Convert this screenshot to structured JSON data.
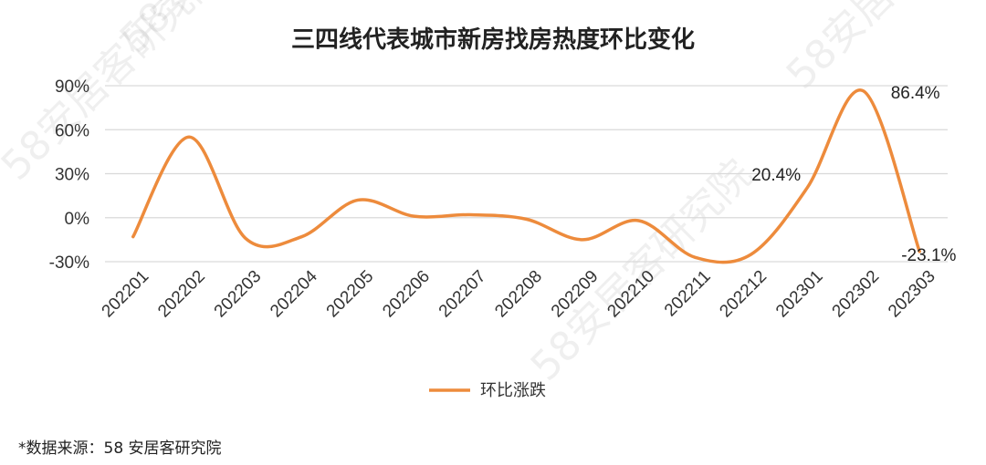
{
  "chart_data": {
    "type": "line",
    "title": "三四线代表城市新房找房热度环比变化",
    "categories": [
      "202201",
      "202202",
      "202203",
      "202204",
      "202205",
      "202206",
      "202207",
      "202208",
      "202209",
      "202210",
      "202211",
      "202212",
      "202301",
      "202302",
      "202303"
    ],
    "series": [
      {
        "name": "环比涨跌",
        "color": "#ED8B3C",
        "values": [
          -0.13,
          0.55,
          -0.14,
          -0.13,
          0.12,
          0.01,
          0.02,
          -0.01,
          -0.15,
          -0.02,
          -0.27,
          -0.25,
          0.204,
          0.864,
          -0.231
        ]
      }
    ],
    "yticks": [
      "90%",
      "60%",
      "30%",
      "0%",
      "-30%"
    ],
    "ylim": [
      -0.3,
      0.9
    ],
    "data_labels": [
      {
        "index": 12,
        "text": "20.4%"
      },
      {
        "index": 13,
        "text": "86.4%"
      },
      {
        "index": 14,
        "text": "-23.1%"
      }
    ],
    "grid": true,
    "legend_position": "bottom"
  },
  "source_note": "*数据来源：58 安居客研究院",
  "watermark": "58安居客研究院"
}
